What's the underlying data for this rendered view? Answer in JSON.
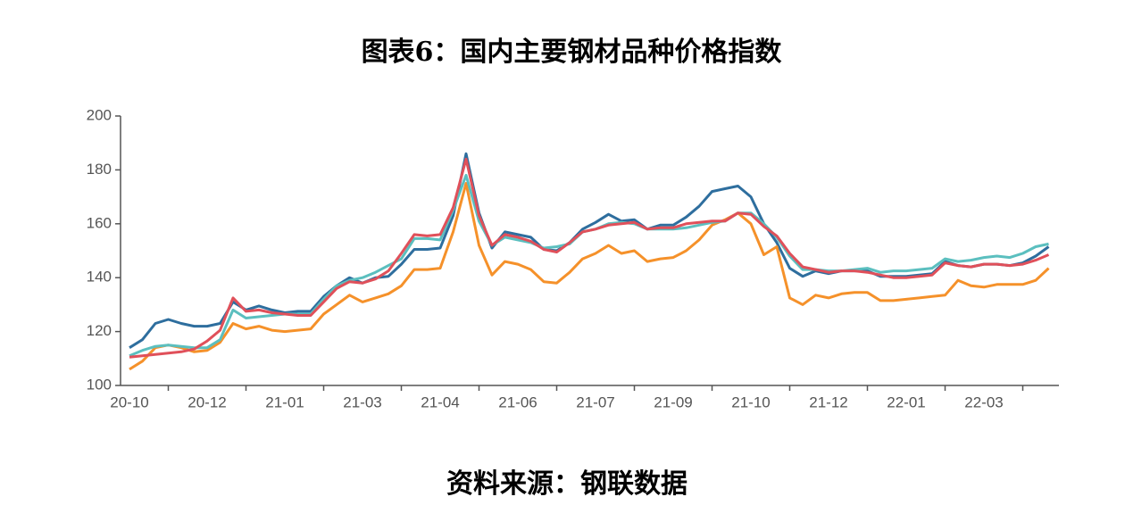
{
  "chart_data": {
    "type": "line",
    "title": "图表6：国内主要钢材品种价格指数",
    "source": "资料来源：钢联数据",
    "categories": [
      "20-10",
      null,
      null,
      null,
      null,
      null,
      "20-12",
      null,
      null,
      null,
      null,
      null,
      "21-01",
      null,
      null,
      null,
      null,
      null,
      "21-03",
      null,
      null,
      null,
      null,
      null,
      "21-04",
      null,
      null,
      null,
      null,
      null,
      "21-06",
      null,
      null,
      null,
      null,
      null,
      "21-07",
      null,
      null,
      null,
      null,
      null,
      "21-09",
      null,
      null,
      null,
      null,
      null,
      "21-10",
      null,
      null,
      null,
      null,
      null,
      "21-12",
      null,
      null,
      null,
      null,
      null,
      "22-01",
      null,
      null,
      null,
      null,
      null,
      "22-03",
      null,
      null,
      null,
      null,
      null
    ],
    "ylim": [
      100,
      200
    ],
    "yticks": [
      100,
      120,
      140,
      160,
      180,
      200
    ],
    "grid": false,
    "series": [
      {
        "color": "#2e6e9e",
        "values": [
          114,
          117,
          123,
          124.5,
          123,
          122,
          122,
          123,
          131,
          128,
          129.5,
          128,
          127,
          127.5,
          127.5,
          133,
          137,
          140,
          138,
          140,
          140.5,
          145,
          150.5,
          150.5,
          151,
          163,
          186,
          164,
          151,
          157,
          156,
          155,
          150.5,
          150,
          153,
          158,
          160.5,
          163.5,
          161,
          161.5,
          158,
          159.5,
          159.5,
          162.5,
          166.5,
          172,
          173,
          174,
          170,
          160,
          153,
          143.5,
          140.5,
          142.5,
          141.5,
          142.5,
          142.5,
          142.5,
          140.5,
          140.5,
          140.5,
          141,
          141.5,
          146,
          144.5,
          144,
          145,
          145,
          144.5,
          145.5,
          148,
          151.5
        ]
      },
      {
        "color": "#f5912a",
        "values": [
          106,
          109,
          114,
          115,
          114,
          112.5,
          113,
          116,
          123,
          121,
          122,
          120.5,
          120,
          120.5,
          121,
          126.5,
          130,
          133.5,
          131,
          132.5,
          134,
          137,
          143,
          143,
          143.5,
          157,
          175,
          152,
          141,
          146,
          145,
          143,
          138.5,
          138,
          142,
          147,
          149,
          152,
          149,
          150,
          146,
          147,
          147.5,
          150,
          154,
          159.5,
          161.5,
          164,
          160,
          148.5,
          151.5,
          132.5,
          130,
          133.5,
          132.5,
          134,
          134.5,
          134.5,
          131.5,
          131.5,
          132,
          132.5,
          133,
          133.5,
          139,
          137,
          136.5,
          137.5,
          137.5,
          137.5,
          139,
          143.5
        ]
      },
      {
        "color": "#5bbfbf",
        "values": [
          111,
          113,
          114.5,
          115,
          114.5,
          114,
          114,
          117,
          128,
          125,
          125.5,
          126,
          126.5,
          126.5,
          126.5,
          132,
          137,
          139,
          140,
          142,
          144.5,
          147,
          154.5,
          154.5,
          154,
          165,
          178,
          161,
          152,
          155,
          154,
          153,
          151,
          151.5,
          152.5,
          157,
          158,
          160,
          160.5,
          160,
          158,
          158,
          158,
          158.5,
          159.5,
          160.5,
          161,
          164,
          164,
          160,
          155,
          148,
          143,
          143,
          142.5,
          142.5,
          143,
          143.5,
          142,
          142.5,
          142.5,
          143,
          143.5,
          147,
          146,
          146.5,
          147.5,
          148,
          147.5,
          149,
          151.5,
          152.5
        ]
      },
      {
        "color": "#e0505a",
        "values": [
          110.5,
          111,
          111.5,
          112,
          112.5,
          113.5,
          116.5,
          120.5,
          132.5,
          127.5,
          128,
          127,
          126.5,
          126,
          126,
          131,
          136,
          138.5,
          138,
          139.5,
          142.5,
          149,
          156,
          155.5,
          156,
          166,
          184,
          163,
          152,
          156,
          155,
          153.5,
          150.5,
          149.5,
          153,
          157,
          158,
          159.5,
          160,
          160.5,
          158,
          158.5,
          158.5,
          160,
          160.5,
          161,
          161,
          164,
          163.5,
          159,
          155.5,
          149,
          144,
          143,
          142,
          142.5,
          142.5,
          142,
          141,
          140,
          140,
          140.5,
          141,
          145.5,
          144.5,
          144,
          145,
          145,
          144.5,
          145,
          146.5,
          148.5
        ]
      }
    ]
  }
}
